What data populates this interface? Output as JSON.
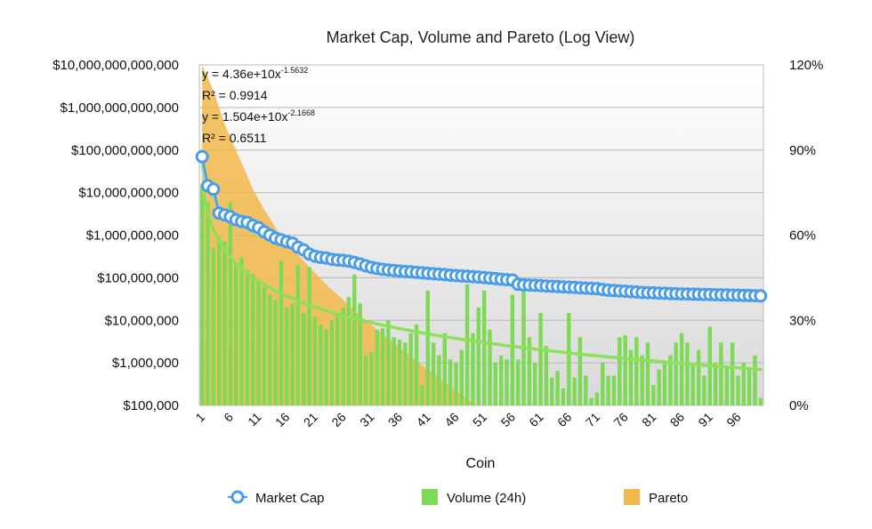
{
  "chart_data": {
    "type": "bar",
    "title": "Market Cap, Volume and Pareto (Log View)",
    "xlabel": "Coin",
    "ylabel_left": "",
    "ylabel_right": "",
    "x_tick_labels": [
      "1",
      "6",
      "11",
      "16",
      "21",
      "26",
      "31",
      "36",
      "41",
      "46",
      "51",
      "56",
      "61",
      "66",
      "71",
      "76",
      "81",
      "86",
      "91",
      "96"
    ],
    "y_left_tick_labels": [
      "$100,000",
      "$1,000,000",
      "$10,000,000",
      "$100,000,000",
      "$1,000,000,000",
      "$10,000,000,000",
      "$100,000,000,000",
      "$1,000,000,000,000",
      "$10,000,000,000,000"
    ],
    "y_right_tick_labels": [
      "0%",
      "30%",
      "60%",
      "90%",
      "120%"
    ],
    "y_left_range": [
      100000,
      10000000000000
    ],
    "y_right_range": [
      0,
      120
    ],
    "x_range": [
      1,
      100
    ],
    "series": [
      {
        "name": "Market Cap",
        "type": "line",
        "color": "#4a9de6",
        "values": [
          70000000000,
          14500000000,
          12000000000,
          3300000000,
          3000000000,
          2700000000,
          2300000000,
          2100000000,
          2000000000,
          1700000000,
          1500000000,
          1200000000,
          1000000000,
          850000000,
          780000000,
          700000000,
          650000000,
          520000000,
          450000000,
          360000000,
          320000000,
          300000000,
          290000000,
          270000000,
          260000000,
          255000000,
          245000000,
          230000000,
          210000000,
          190000000,
          175000000,
          165000000,
          158000000,
          152000000,
          148000000,
          143000000,
          140000000,
          137000000,
          133000000,
          130000000,
          127000000,
          124000000,
          121000000,
          118000000,
          115000000,
          112000000,
          110000000,
          108000000,
          106000000,
          104000000,
          101000000,
          98000000,
          95000000,
          92000000,
          90000000,
          88000000,
          70000000,
          68000000,
          67000000,
          66000000,
          65000000,
          64000000,
          63000000,
          62000000,
          61000000,
          60000000,
          59000000,
          58000000,
          57000000,
          56000000,
          55000000,
          53000000,
          51000000,
          50000000,
          49000000,
          48000000,
          47000000,
          46000000,
          45000000,
          44500000,
          44000000,
          43500000,
          43000000,
          42500000,
          42000000,
          41700000,
          41400000,
          41100000,
          40800000,
          40500000,
          40200000,
          39900000,
          39600000,
          39300000,
          39000000,
          38700000,
          38400000,
          38100000,
          37800000,
          37500000
        ]
      },
      {
        "name": "Volume (24h)",
        "type": "bar",
        "color": "#7ed956",
        "values": [
          15000000000,
          6000000000,
          500000000,
          900000000,
          700000000,
          6000000000,
          200000000,
          300000000,
          150000000,
          120000000,
          80000000,
          60000000,
          40000000,
          30000000,
          250000000,
          20000000,
          25000000,
          200000000,
          15000000,
          180000000,
          12000000,
          8000000,
          6000000,
          10000000,
          14000000,
          20000000,
          35000000,
          120000000,
          25000000,
          1500000,
          1800000,
          6000000,
          6500000,
          10000000,
          4000000,
          3500000,
          3000000,
          5000000,
          8000000,
          300000,
          50000000,
          3000000,
          1500000,
          5000000,
          1200000,
          1000000,
          2000000,
          70000000,
          5000000,
          20000000,
          50000000,
          6000000,
          1000000,
          1500000,
          1200000,
          40000000,
          1200000,
          50000000,
          4000000,
          1000000,
          15000000,
          2500000,
          450000,
          650000,
          250000,
          15000000,
          450000,
          4000000,
          500000,
          150000,
          200000,
          1000000,
          500000,
          500000,
          4000000,
          4500000,
          2000000,
          4000000,
          1500000,
          3000000,
          300000,
          700000,
          1000000,
          1500000,
          3000000,
          5000000,
          3000000,
          1000000,
          2000000,
          500000,
          7000000,
          1000000,
          3000000,
          800000,
          3000000,
          500000,
          1000000,
          800000,
          1500000,
          150000
        ]
      },
      {
        "name": "Pareto",
        "type": "area",
        "color": "#f2b84b",
        "values": [
          10000000000000,
          5000000000000,
          2500000000000,
          1000000000000,
          400000000000,
          200000000000,
          100000000000,
          50000000000,
          25000000000,
          12000000000,
          7000000000,
          4000000000,
          2500000000,
          1500000000,
          1000000000,
          700000000,
          500000000,
          350000000,
          250000000,
          180000000,
          130000000,
          95000000,
          70000000,
          52000000,
          40000000,
          30000000,
          23000000,
          17000000,
          13000000,
          10000000,
          7800000,
          6000000,
          4700000,
          3700000,
          2900000,
          2300000,
          1800000,
          1400000,
          1100000,
          870000,
          690000,
          550000,
          440000,
          350000,
          280000,
          220000,
          180000,
          140000,
          110000,
          100000
        ]
      }
    ],
    "trendlines": [
      {
        "series": "Market Cap",
        "equation": "y = 4.36e+10x",
        "exponent": "-1.5632",
        "r_squared": "R² = 0.9914",
        "coef": 43600000000,
        "power": -1.5632,
        "color": "#9fd8a8"
      },
      {
        "series": "Volume (24h)",
        "equation": "y = 1.504e+10x",
        "exponent": "-2.1668",
        "r_squared": "R² = 0.6511",
        "coef": 15040000000,
        "power": -2.1668,
        "color": "#8ee05a"
      }
    ],
    "legend": [
      {
        "label": "Market Cap",
        "icon": "circle-marker-icon",
        "color": "#4a9de6"
      },
      {
        "label": "Volume (24h)",
        "icon": "green-square-icon",
        "color": "#7ed956"
      },
      {
        "label": "Pareto",
        "icon": "orange-square-icon",
        "color": "#f2b84b"
      }
    ],
    "legend_position": "bottom",
    "grid": true
  }
}
